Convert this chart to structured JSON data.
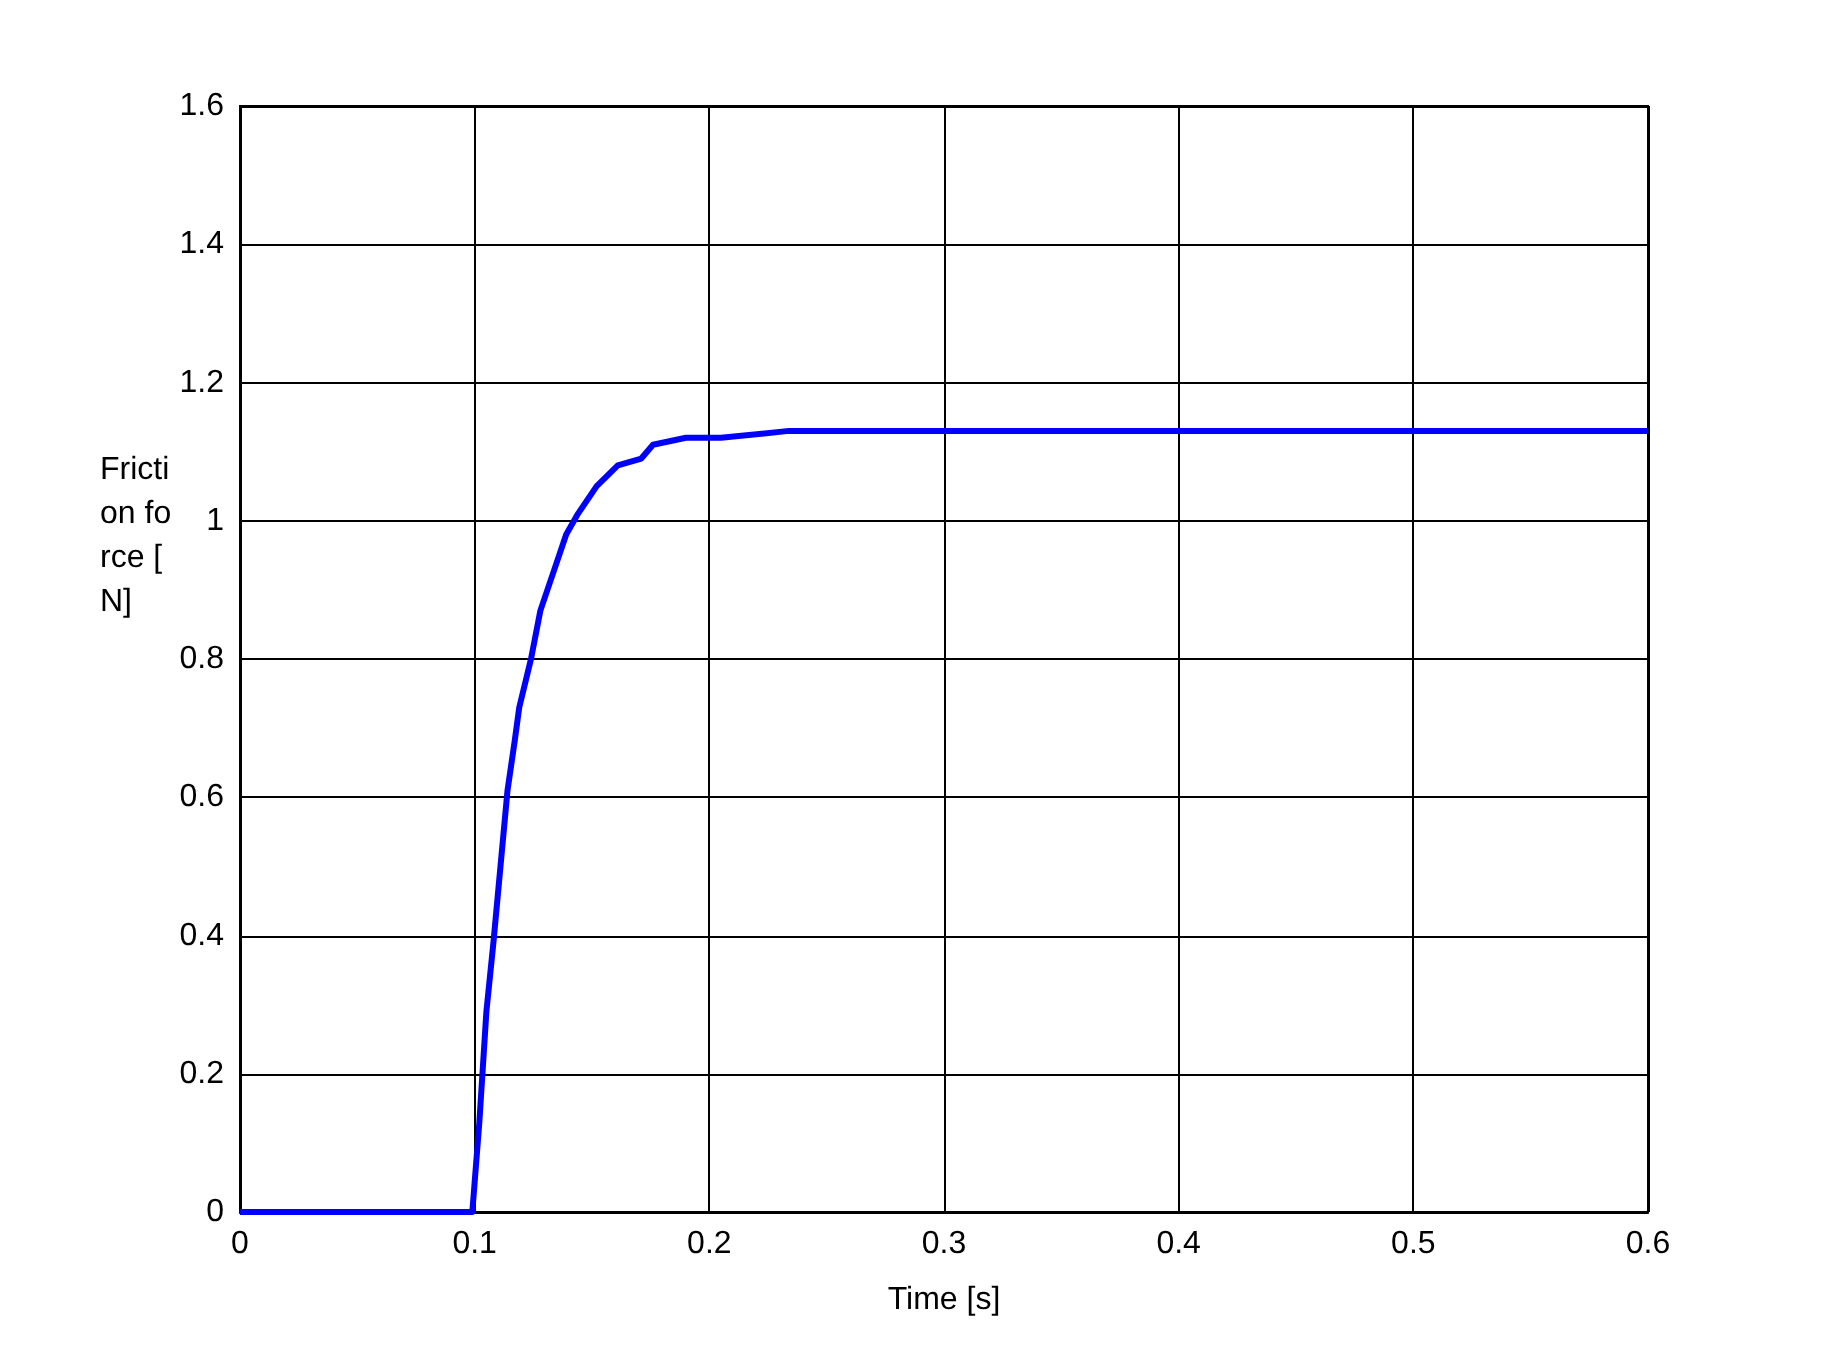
{
  "chart_data": {
    "type": "line",
    "xlabel": "Time [s]",
    "ylabel": "Friction force [N]",
    "xlim": [
      0,
      0.6
    ],
    "xticks": [
      0,
      0.1,
      0.2,
      0.3,
      0.4,
      0.5,
      0.6
    ],
    "ylim": [
      0,
      1.6
    ],
    "yticks": [
      0,
      0.2,
      0.4,
      0.6,
      0.8,
      1,
      1.2,
      1.4,
      1.6
    ],
    "grid": true,
    "marker": "none",
    "line_style": "solid",
    "series": [
      {
        "color": "#0000ff",
        "x": [
          0,
          0.099,
          0.102,
          0.105,
          0.108,
          0.111,
          0.114,
          0.117,
          0.119,
          0.124,
          0.128,
          0.134,
          0.139,
          0.144,
          0.152,
          0.161,
          0.171,
          0.176,
          0.19,
          0.205,
          0.234,
          0.6
        ],
        "values": [
          0,
          0,
          0.13,
          0.29,
          0.39,
          0.5,
          0.61,
          0.68,
          0.73,
          0.8,
          0.87,
          0.93,
          0.98,
          1.01,
          1.05,
          1.08,
          1.09,
          1.11,
          1.12,
          1.12,
          1.13,
          1.13
        ]
      }
    ]
  }
}
